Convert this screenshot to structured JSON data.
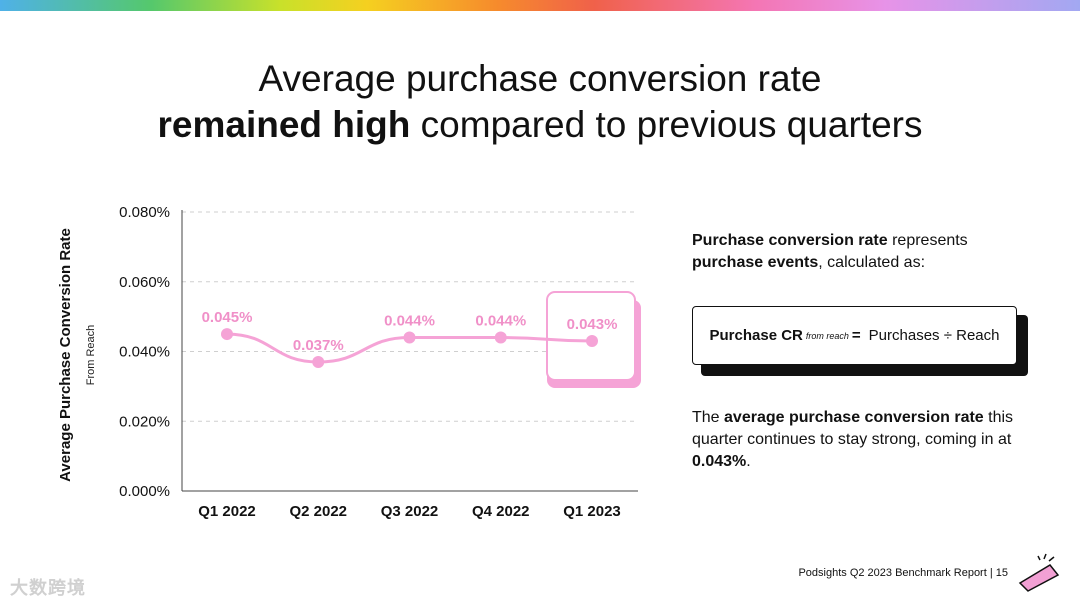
{
  "title": {
    "line1": "Average purchase conversion rate",
    "line2_bold": "remained high",
    "line2_rest": " compared to previous quarters"
  },
  "chart_data": {
    "type": "line",
    "categories": [
      "Q1 2022",
      "Q2 2022",
      "Q3 2022",
      "Q4 2022",
      "Q1 2023"
    ],
    "values": [
      0.045,
      0.037,
      0.044,
      0.044,
      0.043
    ],
    "labels": [
      "0.045%",
      "0.037%",
      "0.044%",
      "0.044%",
      "0.043%"
    ],
    "yticks": [
      "0.000%",
      "0.020%",
      "0.040%",
      "0.060%",
      "0.080%"
    ],
    "ylim": [
      0,
      0.08
    ],
    "ylabel": "Average Purchase Conversion Rate",
    "ylabel_sub": "From Reach",
    "highlight": "Q1 2023",
    "colors": {
      "line": "#f5a3d6",
      "label": "#f090c8"
    }
  },
  "explanation": {
    "bold1": "Purchase conversion rate",
    "text1": " represents ",
    "bold2": "purchase events",
    "text2": ", calculated as:"
  },
  "formula": {
    "term": "Purchase CR",
    "sub": "from reach",
    "equals": "=",
    "expr": "Purchases ÷ Reach"
  },
  "summary": {
    "t1": "The ",
    "b1": "average purchase conversion rate",
    "t2": " this quarter continues to stay strong, coming in at ",
    "b2": "0.043%",
    "t3": "."
  },
  "footer": "Podsights Q2 2023 Benchmark Report | 15",
  "watermark": "大数跨境"
}
